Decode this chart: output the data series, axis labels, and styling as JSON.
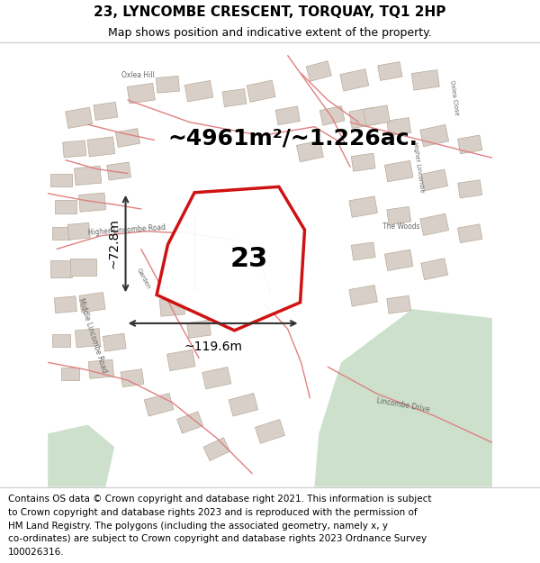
{
  "title": "23, LYNCOMBE CRESCENT, TORQUAY, TQ1 2HP",
  "subtitle": "Map shows position and indicative extent of the property.",
  "area_text": "~4961m²/~1.226ac.",
  "number_label": "23",
  "width_label": "~119.6m",
  "height_label": "~72.8m",
  "footer_lines": [
    "Contains OS data © Crown copyright and database right 2021. This information is subject",
    "to Crown copyright and database rights 2023 and is reproduced with the permission of",
    "HM Land Registry. The polygons (including the associated geometry, namely x, y",
    "co-ordinates) are subject to Crown copyright and database rights 2023 Ordnance Survey",
    "100026316."
  ],
  "map_bg_color": "#f2ede8",
  "green_area_color": "#cce0cc",
  "road_line_color": "#e08080",
  "building_color": "#d8d0c8",
  "building_edge_color": "#b8a898",
  "plot_fill_color": "#ffffff",
  "plot_edge_color": "#cc0000",
  "plot_edge_width": 2.5,
  "dim_arrow_color": "#333333",
  "title_fontsize": 11,
  "subtitle_fontsize": 9,
  "area_fontsize": 18,
  "number_fontsize": 22,
  "footer_fontsize": 7.5,
  "road_label_color": "#666666",
  "road_label_fontsize": 5.5
}
